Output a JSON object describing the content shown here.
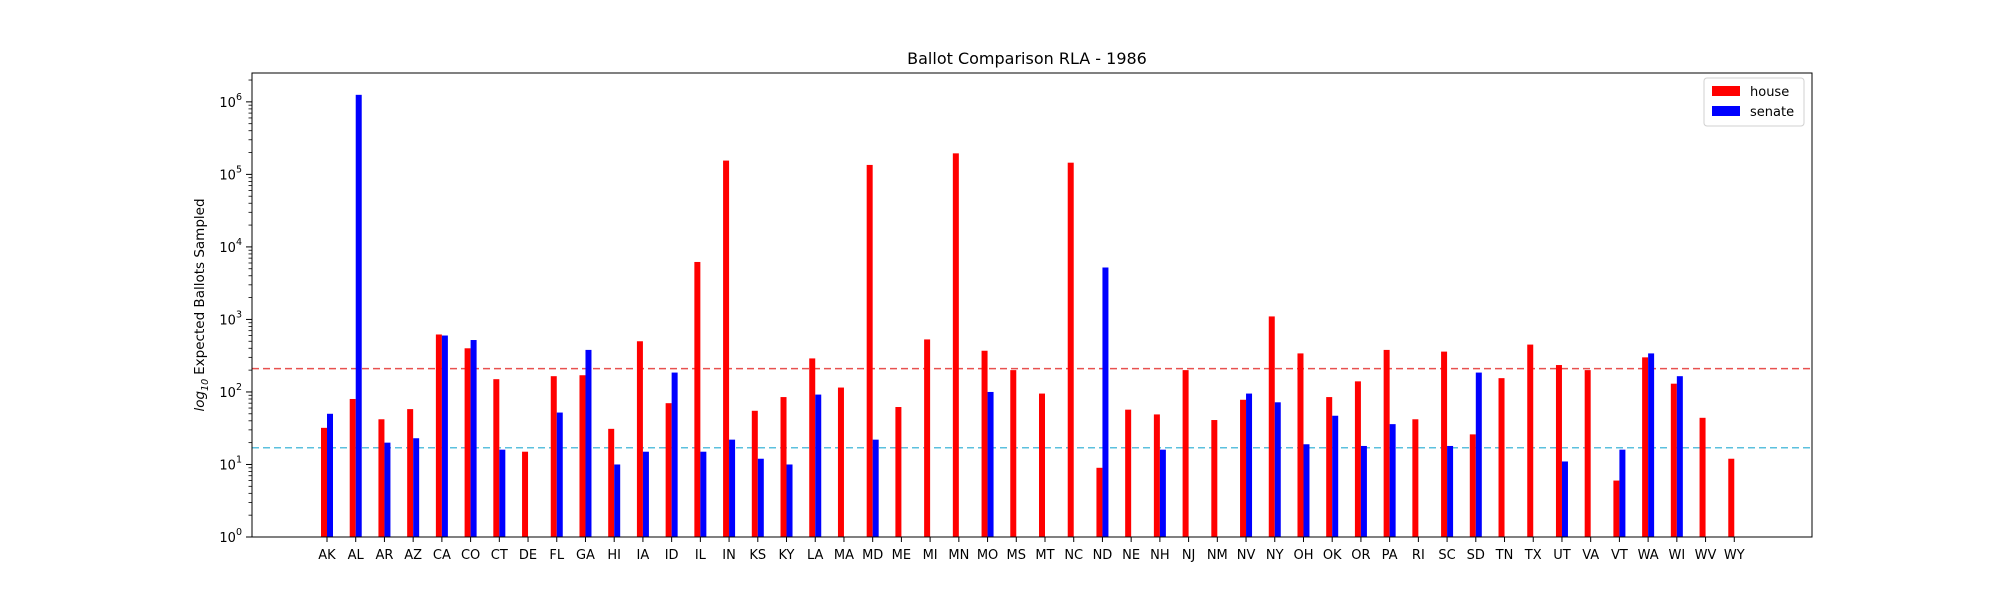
{
  "chart_data": {
    "type": "bar",
    "title": "Ballot Comparison RLA - 1986",
    "xlabel": "",
    "ylabel": "Expected Ballots Sampled",
    "ylabel_prefix": "log",
    "ylabel_subscript": "10",
    "yscale": "log",
    "ylim": [
      1,
      2500000
    ],
    "yticks": [
      {
        "base": "10",
        "exp": "0"
      },
      {
        "base": "10",
        "exp": "1"
      },
      {
        "base": "10",
        "exp": "2"
      },
      {
        "base": "10",
        "exp": "3"
      },
      {
        "base": "10",
        "exp": "4"
      },
      {
        "base": "10",
        "exp": "5"
      },
      {
        "base": "10",
        "exp": "6"
      }
    ],
    "legend": {
      "position": "top-right"
    },
    "categories": [
      "AK",
      "AL",
      "AR",
      "AZ",
      "CA",
      "CO",
      "CT",
      "DE",
      "FL",
      "GA",
      "HI",
      "IA",
      "ID",
      "IL",
      "IN",
      "KS",
      "KY",
      "LA",
      "MA",
      "MD",
      "ME",
      "MI",
      "MN",
      "MO",
      "MS",
      "MT",
      "NC",
      "ND",
      "NE",
      "NH",
      "NJ",
      "NM",
      "NV",
      "NY",
      "OH",
      "OK",
      "OR",
      "PA",
      "RI",
      "SC",
      "SD",
      "TN",
      "TX",
      "UT",
      "VA",
      "VT",
      "WA",
      "WI",
      "WV",
      "WY"
    ],
    "series": [
      {
        "name": "house",
        "color": "#ff0000",
        "values": [
          32,
          80,
          42,
          58,
          620,
          400,
          150,
          15,
          165,
          170,
          31,
          500,
          70,
          6200,
          155000,
          55,
          85,
          290,
          115,
          135000,
          62,
          530,
          195000,
          370,
          200,
          95,
          145000,
          9,
          57,
          49,
          200,
          41,
          78,
          1100,
          340,
          85,
          140,
          380,
          42,
          360,
          26,
          155,
          450,
          235,
          200,
          6,
          300,
          130,
          44,
          12
        ]
      },
      {
        "name": "senate",
        "color": "#0000ff",
        "values": [
          50,
          1250000,
          20,
          23,
          600,
          520,
          16,
          null,
          52,
          380,
          10,
          15,
          185,
          15,
          22,
          12,
          10,
          92,
          null,
          22,
          null,
          null,
          null,
          100,
          null,
          null,
          null,
          5200,
          null,
          16,
          null,
          null,
          95,
          72,
          19,
          47,
          18,
          36,
          null,
          18,
          185,
          null,
          null,
          11,
          null,
          16,
          340,
          165,
          null,
          null
        ]
      }
    ],
    "reference_lines": [
      {
        "value": 210,
        "color": "#e8514f",
        "style": "dashed"
      },
      {
        "value": 17,
        "color": "#5bc0de",
        "style": "dashed"
      }
    ]
  }
}
